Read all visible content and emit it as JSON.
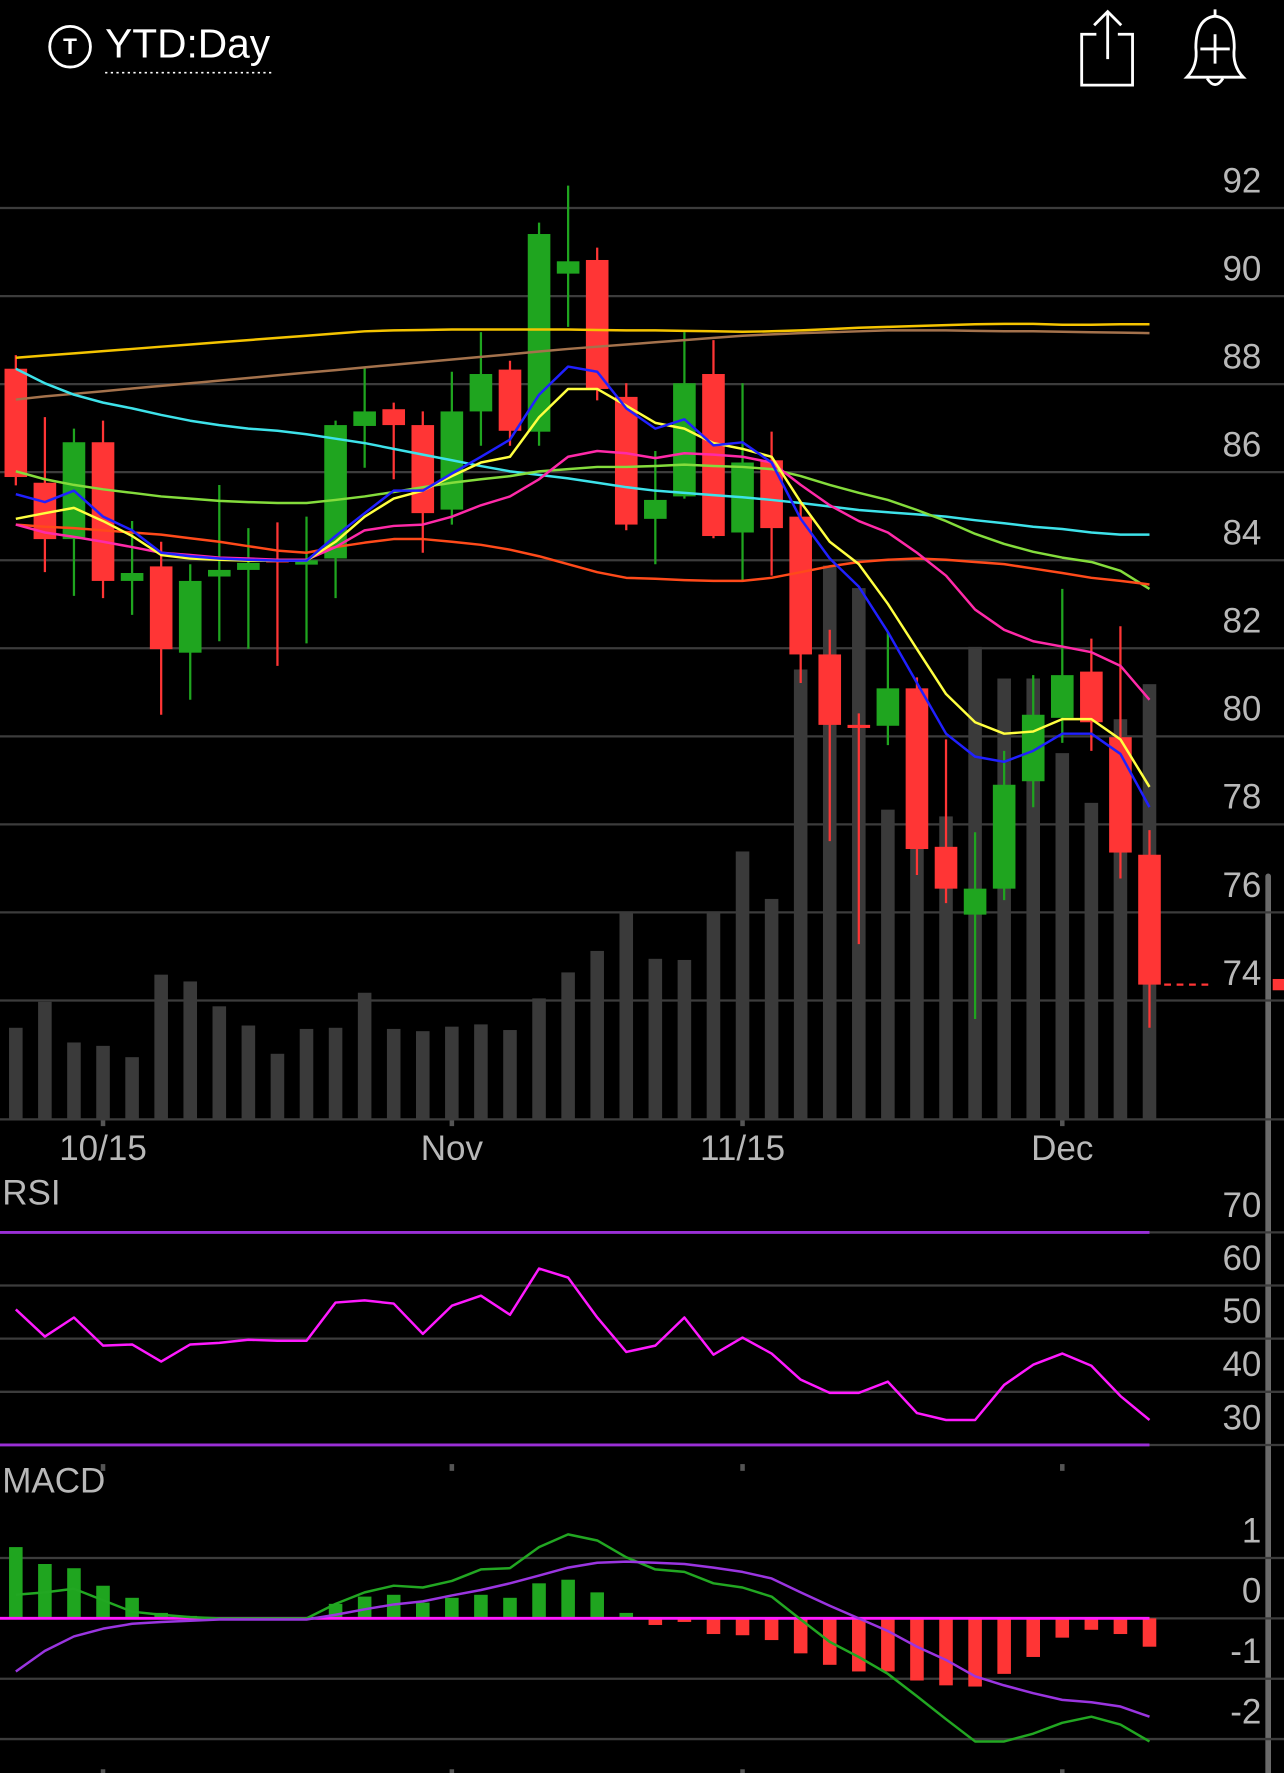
{
  "header": {
    "icon_label": "T",
    "title": "YTD:Day"
  },
  "chart_data": [
    {
      "type": "candlestick",
      "categories": [
        null,
        null,
        null,
        "10/15",
        null,
        null,
        null,
        null,
        null,
        null,
        null,
        null,
        null,
        null,
        null,
        "Nov",
        null,
        null,
        null,
        null,
        null,
        null,
        null,
        null,
        null,
        "11/15",
        null,
        null,
        null,
        null,
        null,
        null,
        null,
        null,
        null,
        null,
        "Dec",
        null,
        null,
        null
      ],
      "open": [
        88.35,
        85.76,
        84.48,
        86.68,
        83.53,
        83.86,
        81.9,
        83.63,
        83.78,
        84.0,
        83.9,
        84.04,
        87.05,
        87.43,
        87.07,
        85.15,
        87.38,
        88.33,
        86.92,
        90.51,
        90.82,
        87.71,
        84.94,
        85.45,
        88.23,
        84.63,
        86.27,
        84.99,
        81.86,
        80.26,
        80.24,
        81.09,
        77.49,
        75.95,
        76.54,
        78.98,
        80.42,
        81.47,
        79.98,
        77.31
      ],
      "high": [
        88.66,
        87.25,
        86.99,
        87.17,
        84.89,
        84.42,
        83.91,
        85.71,
        84.73,
        84.86,
        84.99,
        87.17,
        88.4,
        87.58,
        87.38,
        88.28,
        89.18,
        88.53,
        91.67,
        92.51,
        91.1,
        88.02,
        86.48,
        89.18,
        89.0,
        88.02,
        86.92,
        85.32,
        82.42,
        80.52,
        82.37,
        81.34,
        79.93,
        77.82,
        79.67,
        81.39,
        83.35,
        82.22,
        82.5,
        77.87
      ],
      "low": [
        85.7,
        83.73,
        83.19,
        83.14,
        82.76,
        80.49,
        80.83,
        82.16,
        81.99,
        81.6,
        82.11,
        83.14,
        86.1,
        85.84,
        84.17,
        84.81,
        86.6,
        86.6,
        86.6,
        89.3,
        87.63,
        84.68,
        83.91,
        85.4,
        84.5,
        83.53,
        83.65,
        81.21,
        77.62,
        75.28,
        79.8,
        76.85,
        76.21,
        73.58,
        76.28,
        78.39,
        79.85,
        79.67,
        76.77,
        73.38
      ],
      "close": [
        85.89,
        84.48,
        86.68,
        83.53,
        83.71,
        81.98,
        83.53,
        83.78,
        83.94,
        83.95,
        84.0,
        87.07,
        87.38,
        87.07,
        85.07,
        87.38,
        88.23,
        86.94,
        91.41,
        90.79,
        87.89,
        84.81,
        85.37,
        88.02,
        84.55,
        86.22,
        84.73,
        81.86,
        80.26,
        80.19,
        81.09,
        77.44,
        76.54,
        76.54,
        78.9,
        80.49,
        81.39,
        80.32,
        77.36,
        74.36
      ],
      "up_color": "#1fa51f",
      "down_color": "#ff3535",
      "volume": {
        "color": "#3a3a3a",
        "values": [
          81,
          104,
          68,
          65,
          55,
          128,
          122,
          100,
          83,
          58,
          80,
          81,
          112,
          80,
          78,
          82,
          84,
          79,
          107,
          130,
          149,
          184,
          142,
          141,
          184,
          237,
          195,
          398,
          490,
          470,
          274,
          270,
          268,
          418,
          390,
          390,
          324,
          280,
          354,
          385
        ]
      },
      "moving_averages": [
        {
          "color": "#f5c400",
          "values": [
            88.6,
            88.65,
            88.7,
            88.75,
            88.8,
            88.85,
            88.9,
            88.95,
            89.0,
            89.05,
            89.1,
            89.15,
            89.2,
            89.22,
            89.23,
            89.24,
            89.24,
            89.24,
            89.24,
            89.24,
            89.23,
            89.22,
            89.22,
            89.21,
            89.2,
            89.19,
            89.2,
            89.22,
            89.25,
            89.28,
            89.3,
            89.32,
            89.34,
            89.36,
            89.37,
            89.37,
            89.35,
            89.35,
            89.36,
            89.36
          ]
        },
        {
          "color": "#a4724c",
          "values": [
            87.65,
            87.72,
            87.78,
            87.84,
            87.9,
            87.96,
            88.02,
            88.08,
            88.14,
            88.2,
            88.26,
            88.32,
            88.38,
            88.44,
            88.5,
            88.56,
            88.62,
            88.68,
            88.74,
            88.8,
            88.85,
            88.9,
            88.95,
            89.0,
            89.05,
            89.1,
            89.13,
            89.16,
            89.18,
            89.2,
            89.22,
            89.22,
            89.22,
            89.21,
            89.2,
            89.2,
            89.19,
            89.18,
            89.17,
            89.16
          ]
        },
        {
          "color": "#3ee2ea",
          "values": [
            88.35,
            88.02,
            87.76,
            87.58,
            87.45,
            87.3,
            87.17,
            87.07,
            86.99,
            86.94,
            86.86,
            86.76,
            86.66,
            86.53,
            86.4,
            86.27,
            86.14,
            86.02,
            85.94,
            85.86,
            85.76,
            85.66,
            85.58,
            85.53,
            85.48,
            85.43,
            85.37,
            85.3,
            85.22,
            85.14,
            85.09,
            85.04,
            84.99,
            84.91,
            84.84,
            84.76,
            84.71,
            84.63,
            84.58,
            84.58
          ]
        },
        {
          "color": "#84dc3c",
          "values": [
            86.02,
            85.84,
            85.71,
            85.61,
            85.53,
            85.45,
            85.4,
            85.35,
            85.32,
            85.3,
            85.3,
            85.37,
            85.45,
            85.55,
            85.66,
            85.76,
            85.84,
            85.91,
            86.02,
            86.07,
            86.12,
            86.12,
            86.14,
            86.17,
            86.14,
            86.12,
            86.07,
            85.91,
            85.71,
            85.53,
            85.37,
            85.14,
            84.89,
            84.6,
            84.37,
            84.19,
            84.06,
            83.96,
            83.76,
            83.35
          ]
        },
        {
          "color": "#ff4a1a",
          "values": [
            84.81,
            84.76,
            84.73,
            84.68,
            84.63,
            84.58,
            84.5,
            84.42,
            84.32,
            84.22,
            84.17,
            84.3,
            84.4,
            84.48,
            84.48,
            84.42,
            84.35,
            84.24,
            84.09,
            83.91,
            83.73,
            83.6,
            83.58,
            83.55,
            83.53,
            83.53,
            83.6,
            83.73,
            83.86,
            83.96,
            84.01,
            84.04,
            84.01,
            83.96,
            83.91,
            83.81,
            83.71,
            83.6,
            83.53,
            83.45
          ]
        },
        {
          "color": "#ff2aa8",
          "values": [
            84.81,
            84.63,
            84.53,
            84.42,
            84.3,
            84.17,
            84.12,
            84.06,
            84.04,
            84.01,
            84.01,
            84.3,
            84.68,
            84.78,
            84.81,
            84.99,
            85.25,
            85.45,
            85.84,
            86.35,
            86.48,
            86.43,
            86.32,
            86.43,
            86.4,
            86.35,
            86.22,
            85.71,
            85.25,
            84.89,
            84.63,
            84.17,
            83.65,
            82.88,
            82.42,
            82.16,
            82.04,
            81.91,
            81.6,
            80.83
          ]
        },
        {
          "color": "#ffff40",
          "values": [
            84.94,
            85.07,
            85.19,
            84.89,
            84.55,
            84.12,
            84.04,
            84.01,
            83.99,
            83.99,
            83.99,
            84.42,
            84.99,
            85.4,
            85.58,
            85.91,
            86.22,
            86.35,
            87.25,
            87.89,
            87.89,
            87.51,
            87.12,
            86.99,
            86.66,
            86.53,
            86.35,
            85.32,
            84.42,
            83.91,
            83.01,
            81.98,
            80.96,
            80.32,
            80.06,
            80.11,
            80.39,
            80.39,
            79.93,
            78.85
          ]
        },
        {
          "color": "#2020ff",
          "values": [
            85.5,
            85.32,
            85.58,
            84.99,
            84.68,
            84.17,
            84.09,
            84.04,
            84.01,
            83.99,
            83.99,
            84.55,
            85.07,
            85.58,
            85.58,
            85.97,
            86.35,
            86.74,
            87.76,
            88.4,
            88.28,
            87.45,
            86.99,
            87.2,
            86.61,
            86.68,
            86.22,
            84.94,
            84.04,
            83.4,
            82.37,
            81.21,
            80.06,
            79.54,
            79.42,
            79.67,
            80.06,
            80.06,
            79.6,
            78.39
          ]
        }
      ],
      "ylim": [
        71.3,
        93.2
      ],
      "yticks": [
        74,
        76,
        78,
        80,
        82,
        84,
        86,
        88,
        90,
        92
      ],
      "grid": true
    },
    {
      "type": "line",
      "title": "RSI",
      "series": [
        {
          "color": "#ff1aff",
          "values": [
            55.5,
            50.4,
            54.0,
            48.7,
            48.9,
            45.7,
            48.9,
            49.2,
            49.8,
            49.6,
            49.6,
            56.8,
            57.2,
            56.6,
            50.9,
            56.2,
            58.1,
            54.5,
            63.2,
            61.5,
            54.0,
            47.5,
            48.7,
            54.0,
            47.0,
            50.2,
            47.2,
            42.3,
            39.8,
            39.8,
            41.9,
            36.0,
            34.7,
            34.7,
            41.3,
            45.1,
            47.2,
            44.9,
            39.2,
            34.7
          ]
        }
      ],
      "levels": [
        70,
        30
      ],
      "level_color": "#9a2fd6",
      "ylim": [
        26.4,
        73.2
      ],
      "yticks": [
        30,
        40,
        50,
        60,
        70
      ],
      "grid": true
    },
    {
      "type": "macd",
      "title": "MACD",
      "histogram": {
        "up_color": "#1fa51f",
        "down_color": "#ff3535",
        "values": [
          1.18,
          0.9,
          0.83,
          0.54,
          0.34,
          0.09,
          0.04,
          0.01,
          0,
          0,
          0,
          0.24,
          0.36,
          0.39,
          0.26,
          0.34,
          0.39,
          0.34,
          0.58,
          0.64,
          0.43,
          0.09,
          -0.11,
          -0.06,
          -0.26,
          -0.28,
          -0.36,
          -0.58,
          -0.77,
          -0.88,
          -0.88,
          -1.03,
          -1.11,
          -1.13,
          -0.92,
          -0.64,
          -0.32,
          -0.19,
          -0.26,
          -0.47
        ]
      },
      "series": [
        {
          "color": "#22a722",
          "values": [
            0.39,
            0.43,
            0.49,
            0.3,
            0.11,
            0.06,
            0.02,
            0,
            0,
            0,
            0,
            0.24,
            0.43,
            0.54,
            0.51,
            0.62,
            0.81,
            0.83,
            1.18,
            1.39,
            1.29,
            1.01,
            0.81,
            0.77,
            0.58,
            0.51,
            0.36,
            -0.02,
            -0.39,
            -0.64,
            -0.92,
            -1.29,
            -1.67,
            -2.04,
            -2.04,
            -1.91,
            -1.73,
            -1.63,
            -1.76,
            -2.04
          ]
        },
        {
          "color": "#9a35e0",
          "values": [
            -0.88,
            -0.54,
            -0.3,
            -0.17,
            -0.09,
            -0.06,
            -0.04,
            -0.02,
            -0.02,
            -0.02,
            -0.02,
            0.06,
            0.15,
            0.23,
            0.28,
            0.38,
            0.47,
            0.58,
            0.71,
            0.84,
            0.92,
            0.94,
            0.92,
            0.9,
            0.84,
            0.77,
            0.66,
            0.43,
            0.21,
            0,
            -0.21,
            -0.47,
            -0.69,
            -0.96,
            -1.11,
            -1.24,
            -1.35,
            -1.39,
            -1.46,
            -1.63
          ]
        }
      ],
      "zero_line_color": "#ff1aff",
      "ylim": [
        -2.5,
        1.9
      ],
      "yticks": [
        -2,
        -1,
        0,
        1
      ],
      "grid": true
    }
  ]
}
